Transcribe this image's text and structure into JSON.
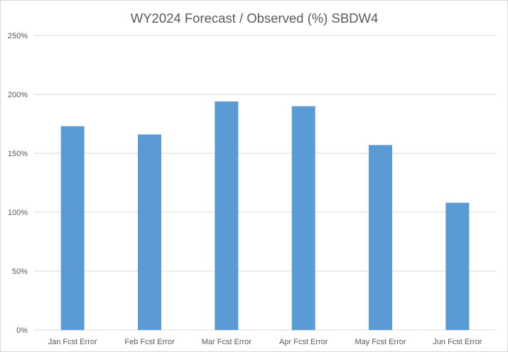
{
  "chart_data": {
    "type": "bar",
    "title": "WY2024 Forecast / Observed (%) SBDW4",
    "xlabel": "",
    "ylabel": "",
    "categories": [
      "Jan Fcst Error",
      "Feb Fcst Error",
      "Mar Fcst Error",
      "Apr Fcst Error",
      "May Fcst Error",
      "Jun Fcst Error"
    ],
    "values": [
      173,
      166,
      194,
      190,
      157,
      108
    ],
    "value_unit": "%",
    "ylim": [
      0,
      250
    ],
    "yticks": [
      "0%",
      "50%",
      "100%",
      "150%",
      "200%",
      "250%"
    ],
    "ytick_values": [
      0,
      50,
      100,
      150,
      200,
      250
    ],
    "grid": true,
    "legend": "none",
    "colors": {
      "bar": "#5b9bd5",
      "grid": "#d9d9d9",
      "text": "#595959"
    }
  }
}
